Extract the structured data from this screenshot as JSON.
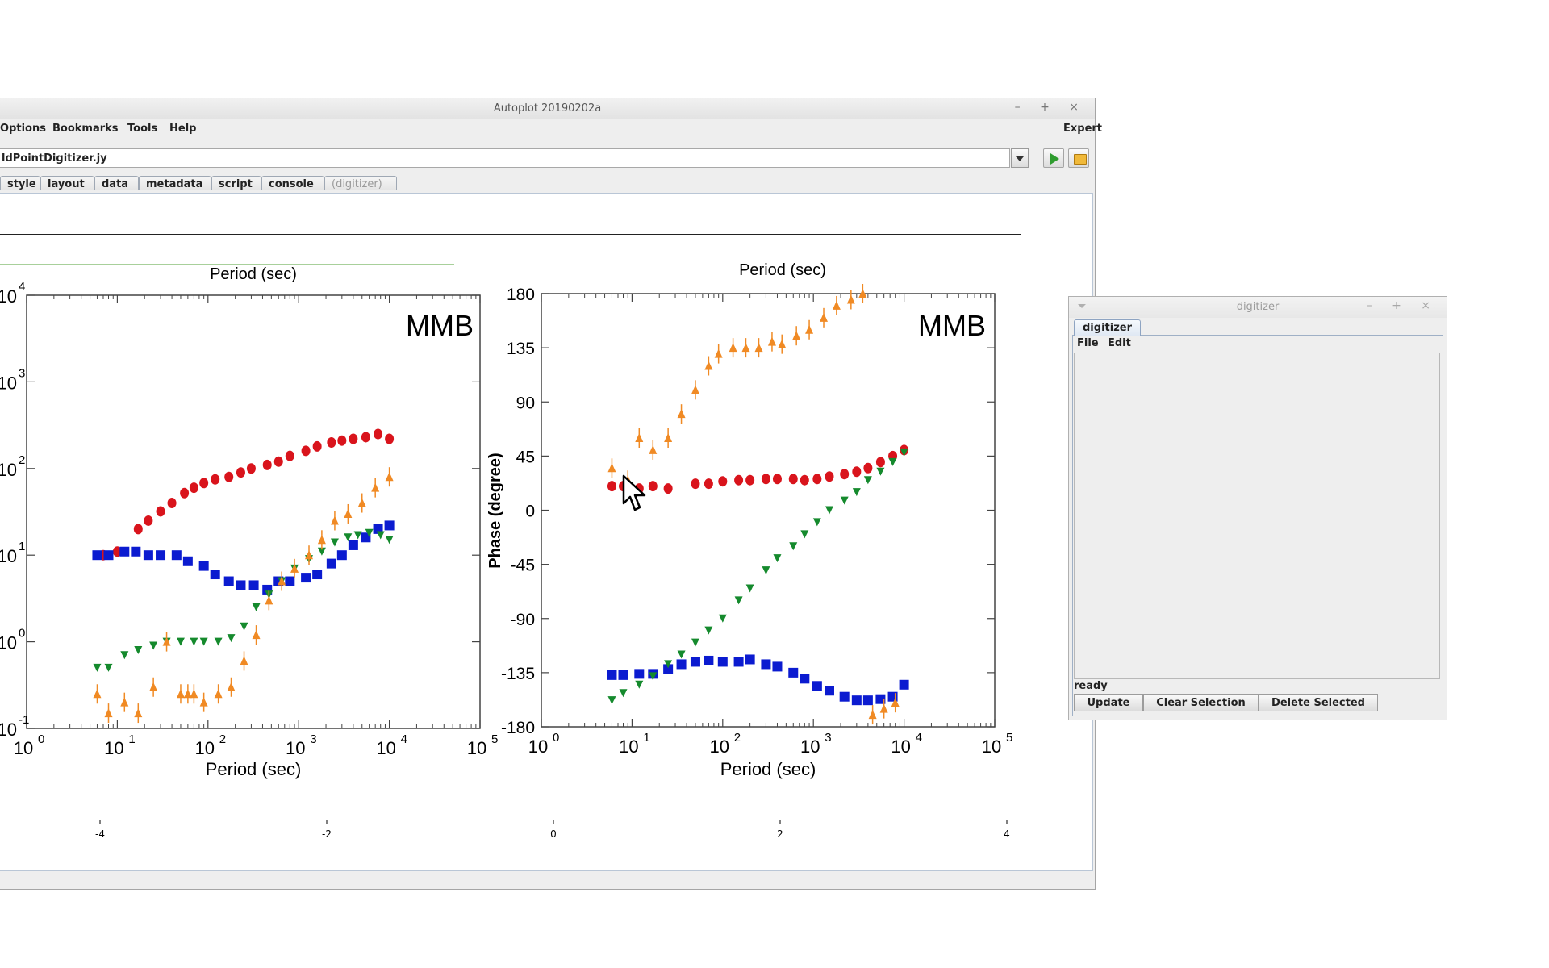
{
  "main_window": {
    "title": "Autoplot 20190202a",
    "window_buttons": "– + ×",
    "menu": {
      "options": "Options",
      "bookmarks": "Bookmarks",
      "tools": "Tools",
      "help": "Help",
      "expert": "Expert"
    },
    "url_value": "ldPointDigitizer.jy",
    "tabs": [
      "style",
      "layout",
      "data",
      "metadata",
      "script",
      "console",
      "(digitizer)"
    ],
    "axis_ticks": [
      "-4",
      "-2",
      "0",
      "2",
      "4"
    ]
  },
  "digitizer_window": {
    "title": "digitizer",
    "window_buttons": "– + ×",
    "tab": "digitizer",
    "menu": {
      "file": "File",
      "edit": "Edit"
    },
    "status": "ready",
    "buttons": {
      "update": "Update",
      "clear_selection": "Clear Selection",
      "delete_selected": "Delete Selected"
    }
  },
  "image_text": {
    "left_title": "Period (sec)",
    "right_title": "Period (sec)",
    "left_xlabel": "Period (sec)",
    "right_xlabel": "Period (sec)",
    "right_ylabel": "Phase (degree)",
    "left_station": "MMB",
    "right_station": "MMB",
    "left_yticks": [
      "4",
      "3",
      "2",
      "1",
      "0",
      "-1"
    ],
    "right_yticks": [
      "180",
      "135",
      "90",
      "45",
      "0",
      "-45",
      "-90",
      "-135",
      "-180"
    ],
    "xtick_exponents": [
      "0",
      "1",
      "2",
      "3",
      "4",
      "5"
    ]
  },
  "chart_data": [
    {
      "type": "scatter",
      "title": "Period (sec)",
      "xlabel": "Period (sec)",
      "ylabel": "",
      "xscale": "log",
      "yscale": "log",
      "xlim": [
        1,
        100000
      ],
      "ylim": [
        0.1,
        10000
      ],
      "series": [
        {
          "color": "#d9141c",
          "x": [
            7,
            10,
            17,
            22,
            30,
            40,
            55,
            70,
            90,
            120,
            170,
            230,
            300,
            450,
            600,
            800,
            1200,
            1600,
            2300,
            3000,
            4000,
            5500,
            7500,
            10000
          ],
          "y": [
            10,
            11,
            20,
            25,
            32,
            40,
            52,
            60,
            68,
            75,
            80,
            90,
            100,
            110,
            120,
            140,
            160,
            180,
            200,
            210,
            220,
            230,
            250,
            220
          ]
        },
        {
          "color": "#0b1bd0",
          "x": [
            6,
            8,
            12,
            16,
            22,
            30,
            45,
            60,
            90,
            120,
            170,
            230,
            320,
            450,
            600,
            800,
            1200,
            1600,
            2300,
            3000,
            4000,
            5500,
            7500,
            10000
          ],
          "y": [
            10,
            10,
            11,
            11,
            10,
            10,
            10,
            8.5,
            7.5,
            6,
            5,
            4.5,
            4.5,
            4,
            5,
            5,
            5.5,
            6,
            8,
            10,
            13,
            16,
            20,
            22
          ]
        },
        {
          "color": "#158a2d",
          "x": [
            6,
            8,
            12,
            17,
            25,
            35,
            50,
            70,
            90,
            130,
            180,
            250,
            340,
            470,
            650,
            900,
            1300,
            1800,
            2500,
            3500,
            4500,
            6000,
            8000,
            10000
          ],
          "y": [
            0.5,
            0.5,
            0.7,
            0.8,
            0.9,
            1,
            1,
            1,
            1,
            1,
            1.1,
            1.5,
            2.5,
            3.5,
            5,
            7,
            9,
            11,
            14,
            16,
            17,
            18,
            17,
            15
          ]
        },
        {
          "color": "#f08a24",
          "x": [
            6,
            8,
            12,
            17,
            25,
            35,
            50,
            60,
            70,
            90,
            130,
            180,
            250,
            340,
            470,
            650,
            900,
            1300,
            1800,
            2500,
            3500,
            5000,
            7000,
            10000
          ],
          "y": [
            0.25,
            0.15,
            0.2,
            0.15,
            0.3,
            1,
            0.25,
            0.25,
            0.25,
            0.2,
            0.25,
            0.3,
            0.6,
            1.2,
            3,
            5,
            7,
            10,
            15,
            25,
            30,
            40,
            60,
            80
          ]
        }
      ]
    },
    {
      "type": "scatter",
      "title": "Period (sec)",
      "xlabel": "Period (sec)",
      "ylabel": "Phase (degree)",
      "xscale": "log",
      "xlim": [
        1,
        100000
      ],
      "ylim": [
        -180,
        180
      ],
      "series": [
        {
          "color": "#d9141c",
          "x": [
            6,
            8,
            12,
            17,
            25,
            50,
            70,
            100,
            150,
            200,
            300,
            400,
            600,
            800,
            1100,
            1500,
            2200,
            3000,
            4000,
            5500,
            7500,
            10000
          ],
          "y": [
            20,
            20,
            18,
            20,
            18,
            22,
            22,
            24,
            25,
            25,
            26,
            26,
            26,
            25,
            26,
            28,
            30,
            32,
            35,
            40,
            45,
            50
          ]
        },
        {
          "color": "#0b1bd0",
          "x": [
            6,
            8,
            12,
            17,
            25,
            35,
            50,
            70,
            100,
            150,
            200,
            300,
            400,
            600,
            800,
            1100,
            1500,
            2200,
            3000,
            4000,
            5500,
            7500,
            10000
          ],
          "y": [
            -137,
            -137,
            -136,
            -136,
            -132,
            -128,
            -126,
            -125,
            -126,
            -126,
            -124,
            -128,
            -130,
            -135,
            -140,
            -146,
            -150,
            -155,
            -158,
            -158,
            -157,
            -155,
            -145
          ]
        },
        {
          "color": "#158a2d",
          "x": [
            6,
            8,
            12,
            17,
            25,
            35,
            50,
            70,
            100,
            150,
            200,
            300,
            400,
            600,
            800,
            1100,
            1500,
            2200,
            3000,
            4000,
            5500,
            7500,
            10000
          ],
          "y": [
            -158,
            -152,
            -145,
            -138,
            -128,
            -120,
            -110,
            -100,
            -90,
            -75,
            -65,
            -50,
            -40,
            -30,
            -20,
            -10,
            0,
            8,
            15,
            25,
            32,
            40,
            48
          ]
        },
        {
          "color": "#f08a24",
          "x": [
            6,
            9,
            12,
            17,
            25,
            35,
            50,
            70,
            90,
            130,
            180,
            250,
            350,
            450,
            650,
            900,
            1300,
            1800,
            2600,
            3500,
            4500,
            6000,
            8000
          ],
          "y": [
            35,
            25,
            60,
            50,
            60,
            80,
            100,
            120,
            130,
            135,
            135,
            135,
            140,
            138,
            145,
            150,
            160,
            170,
            175,
            180,
            -170,
            -165,
            -160
          ]
        }
      ]
    }
  ]
}
